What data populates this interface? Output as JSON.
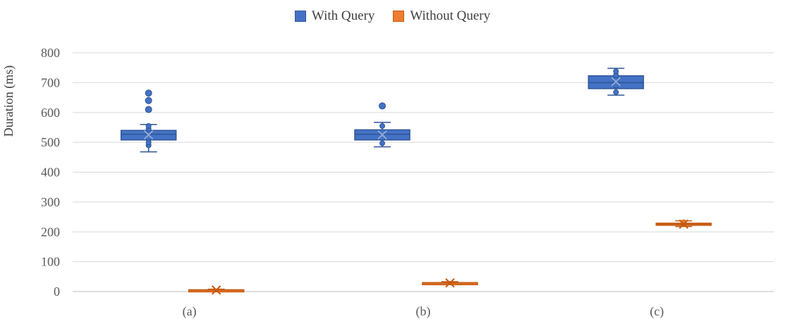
{
  "chart_data": {
    "type": "box",
    "ylabel": "Duration (ms)",
    "ylim": [
      0,
      800
    ],
    "yticks": [
      0,
      100,
      200,
      300,
      400,
      500,
      600,
      700,
      800
    ],
    "grid": true,
    "legend_position": "top-center",
    "categories": [
      "(a)",
      "(b)",
      "(c)"
    ],
    "series": [
      {
        "name": "With Query",
        "color": "#4472C4",
        "stroke": "#2F5597",
        "boxes": [
          {
            "min": 468,
            "q1": 508,
            "median": 527,
            "q3": 540,
            "max": 560,
            "mean": 525,
            "points": [
              490,
              500,
              515,
              530,
              545,
              555
            ],
            "outliers": [
              610,
              640,
              665
            ]
          },
          {
            "min": 485,
            "q1": 508,
            "median": 527,
            "q3": 542,
            "max": 567,
            "mean": 525,
            "points": [
              497,
              515,
              535,
              555
            ],
            "outliers": [
              622
            ]
          },
          {
            "min": 658,
            "q1": 680,
            "median": 700,
            "q3": 723,
            "max": 748,
            "mean": 703,
            "points": [
              668,
              690,
              710,
              725,
              738
            ],
            "outliers": []
          }
        ]
      },
      {
        "name": "Without Query",
        "color": "#ED7D31",
        "stroke": "#C55A11",
        "boxes": [
          {
            "min": 3,
            "q1": 4,
            "median": 5,
            "q3": 6,
            "max": 8,
            "mean": 5,
            "points": [],
            "outliers": []
          },
          {
            "min": 24,
            "q1": 27,
            "median": 29,
            "q3": 30,
            "max": 33,
            "mean": 29,
            "points": [],
            "outliers": []
          },
          {
            "min": 218,
            "q1": 223,
            "median": 226,
            "q3": 229,
            "max": 237,
            "mean": 226,
            "points": [
              232
            ],
            "outliers": []
          }
        ]
      }
    ]
  }
}
